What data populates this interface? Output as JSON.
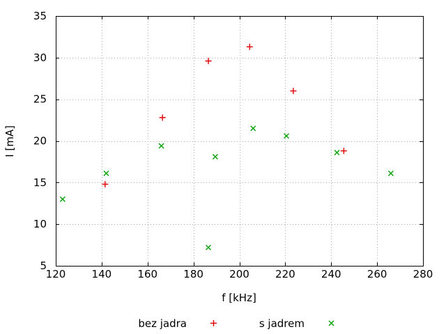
{
  "chart_data": {
    "type": "scatter",
    "title": "",
    "xlabel": "f [kHz]",
    "ylabel": "I [mA]",
    "xlim": [
      120,
      280
    ],
    "ylim": [
      5,
      35
    ],
    "xticks": [
      120,
      140,
      160,
      180,
      200,
      220,
      240,
      260,
      280
    ],
    "yticks": [
      5,
      10,
      15,
      20,
      25,
      30,
      35
    ],
    "grid": true,
    "legend_position": "bottom-center",
    "series": [
      {
        "name": "bez jadra",
        "marker": "plus",
        "color": "#e00000",
        "points": [
          [
            141.5,
            14.8
          ],
          [
            166.5,
            22.8
          ],
          [
            186.5,
            29.6
          ],
          [
            204.5,
            31.3
          ],
          [
            223.5,
            26.0
          ],
          [
            245.5,
            18.8
          ]
        ]
      },
      {
        "name": "s jadrem",
        "marker": "cross",
        "color": "#00a000",
        "points": [
          [
            123,
            13.0
          ],
          [
            142,
            16.1
          ],
          [
            166,
            19.4
          ],
          [
            186.5,
            7.2
          ],
          [
            189.5,
            18.1
          ],
          [
            206,
            21.5
          ],
          [
            220.5,
            20.6
          ],
          [
            242.5,
            18.6
          ],
          [
            266,
            16.1
          ]
        ]
      }
    ],
    "colors": {
      "background": "#ffffff",
      "axis": "#000000",
      "grid": "#aaaaaa",
      "text": "#000000"
    }
  }
}
